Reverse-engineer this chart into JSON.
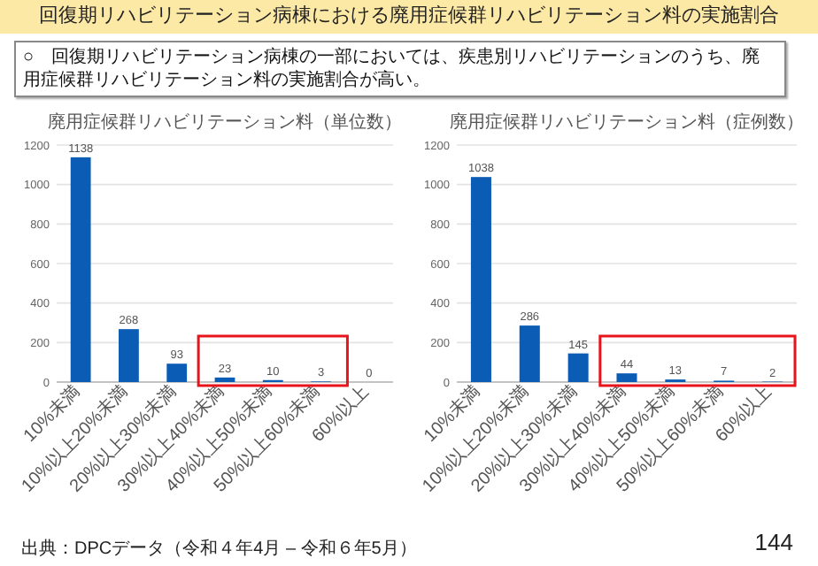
{
  "chart_data": [
    {
      "type": "other",
      "title": "回復期リハビリテーション病棟における廃用症候群リハビリテーション料の実施割合",
      "subtitle": "○　回復期リハビリテーション病棟の一部においては、疾患別リハビリテーションのうち、廃用症候群リハビリテーション料の実施割合が高い。",
      "annotations": [
        "出典：DPCデータ（令和４年4月 – 令和６年5月）",
        "144"
      ]
    },
    {
      "type": "bar",
      "title": "廃用症候群リハビリテーション料（単位数）",
      "categories": [
        "10%未満",
        "10%以上20%未満",
        "20%以上30%未満",
        "30%以上40%未満",
        "40%以上50%未満",
        "50%以上60%未満",
        "60%以上"
      ],
      "values": [
        1138,
        268,
        93,
        23,
        10,
        3,
        0
      ],
      "color": "#0b5cb5",
      "ylim": [
        0,
        1200
      ],
      "yticks": [
        0,
        200,
        400,
        600,
        800,
        1000,
        1200
      ],
      "grid": "y",
      "data_labels": true
    },
    {
      "type": "bar",
      "title": "廃用症候群リハビリテーション料（症例数）",
      "categories": [
        "10%未満",
        "10%以上20%未満",
        "20%以上30%未満",
        "30%以上40%未満",
        "40%以上50%未満",
        "50%以上60%未満",
        "60%以上"
      ],
      "values": [
        1038,
        286,
        145,
        44,
        13,
        7,
        2
      ],
      "color": "#0b5cb5",
      "ylim": [
        0,
        1200
      ],
      "yticks": [
        0,
        200,
        400,
        600,
        800,
        1000,
        1200
      ],
      "grid": "y",
      "data_labels": true
    }
  ]
}
